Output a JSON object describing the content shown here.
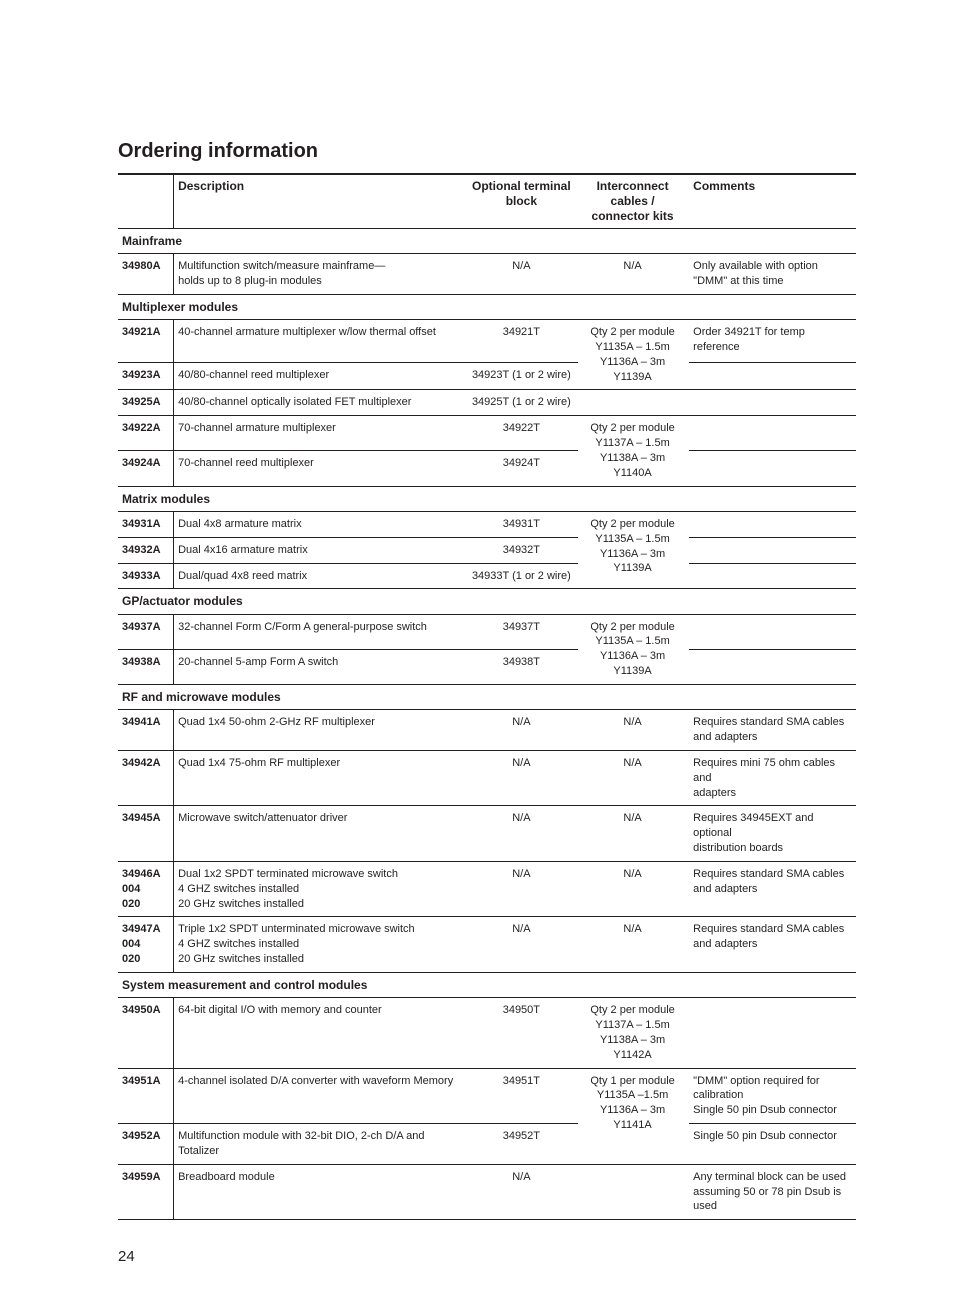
{
  "title": "Ordering information",
  "page_number": "24",
  "headers": {
    "model": "",
    "description": "Description",
    "terminal": "Optional terminal block",
    "cables": "Interconnect cables / connector kits",
    "comments": "Comments"
  },
  "sections": [
    {
      "heading": "Mainframe",
      "rows": [
        {
          "model": "34980A",
          "desc": [
            "Multifunction switch/measure mainframe—",
            "holds up to 8 plug-in modules"
          ],
          "term": "N/A",
          "cable": "N/A",
          "comments": [
            "Only available with option",
            "\"DMM\" at this time"
          ]
        }
      ]
    },
    {
      "heading": "Multiplexer modules",
      "rows": [
        {
          "model": "34921A",
          "desc": [
            "40-channel armature multiplexer w/low thermal offset"
          ],
          "term": "34921T",
          "cable": [
            "Qty 2 per module",
            "Y1135A – 1.5m",
            "Y1136A – 3m"
          ],
          "cable_rowspan": 2,
          "cable_extra": "Y1139A",
          "comments": [
            "Order 34921T for temp reference"
          ]
        },
        {
          "model": "34923A",
          "desc": [
            "40/80-channel reed multiplexer"
          ],
          "term": "34923T (1 or 2 wire)"
        },
        {
          "model": "34925A",
          "desc": [
            "40/80-channel optically isolated FET multiplexer"
          ],
          "term": "34925T (1 or 2 wire)"
        },
        {
          "model": "34922A",
          "desc": [
            "70-channel armature multiplexer"
          ],
          "term": "34922T",
          "cable": [
            "Qty 2 per module",
            "Y1137A – 1.5m",
            "Y1138A – 3m"
          ],
          "cable_rowspan": 2,
          "cable_extra": "Y1140A"
        },
        {
          "model": "34924A",
          "desc": [
            "70-channel reed multiplexer"
          ],
          "term": "34924T"
        }
      ]
    },
    {
      "heading": "Matrix modules",
      "rows": [
        {
          "model": "34931A",
          "desc": [
            "Dual 4x8 armature matrix"
          ],
          "term": "34931T",
          "cable": [
            "Qty 2 per module",
            "Y1135A – 1.5m",
            "Y1136A – 3m"
          ],
          "cable_rowspan": 3,
          "cable_extra": "Y1139A"
        },
        {
          "model": "34932A",
          "desc": [
            "Dual 4x16 armature matrix"
          ],
          "term": "34932T"
        },
        {
          "model": "34933A",
          "desc": [
            "Dual/quad 4x8 reed matrix"
          ],
          "term": "34933T (1 or 2 wire)"
        }
      ]
    },
    {
      "heading": "GP/actuator modules",
      "rows": [
        {
          "model": "34937A",
          "desc": [
            "32-channel Form C/Form A general-purpose switch"
          ],
          "term": "34937T",
          "cable": [
            "Qty 2 per module",
            "Y1135A – 1.5m",
            "Y1136A – 3m"
          ],
          "cable_rowspan": 2,
          "cable_extra": "Y1139A"
        },
        {
          "model": "34938A",
          "desc": [
            "20-channel 5-amp Form A switch"
          ],
          "term": "34938T"
        }
      ]
    },
    {
      "heading": "RF and microwave modules",
      "rows": [
        {
          "model": "34941A",
          "desc": [
            "Quad 1x4 50-ohm 2-GHz RF multiplexer"
          ],
          "term": "N/A",
          "cable": "N/A",
          "comments": [
            "Requires standard SMA cables",
            "and adapters"
          ]
        },
        {
          "model": "34942A",
          "desc": [
            "Quad 1x4 75-ohm RF multiplexer"
          ],
          "term": "N/A",
          "cable": "N/A",
          "comments": [
            "Requires mini 75 ohm cables and",
            "adapters"
          ]
        },
        {
          "model": "34945A",
          "desc": [
            "Microwave switch/attenuator driver"
          ],
          "term": "N/A",
          "cable": "N/A",
          "comments": [
            "Requires 34945EXT and optional",
            "distribution boards"
          ]
        },
        {
          "model": [
            "34946A",
            "004",
            "020"
          ],
          "desc": [
            "Dual 1x2 SPDT terminated microwave switch",
            "4 GHZ switches installed",
            "20 GHz switches installed"
          ],
          "term": "N/A",
          "cable": "N/A",
          "comments": [
            "Requires standard SMA cables",
            "and adapters"
          ]
        },
        {
          "model": [
            "34947A",
            "004",
            "020"
          ],
          "desc": [
            "Triple 1x2 SPDT unterminated microwave switch",
            "4 GHZ switches installed",
            "20 GHz switches installed"
          ],
          "term": "N/A",
          "cable": "N/A",
          "comments": [
            "Requires standard SMA cables",
            "and adapters"
          ]
        }
      ]
    },
    {
      "heading": "System measurement and control modules",
      "rows": [
        {
          "model": "34950A",
          "desc": [
            "64-bit digital I/O with memory and counter"
          ],
          "term": "34950T",
          "cable": [
            "Qty 2 per module",
            "Y1137A – 1.5m",
            "Y1138A – 3m",
            "Y1142A"
          ]
        },
        {
          "model": "34951A",
          "desc": [
            "4-channel isolated D/A converter with waveform Memory"
          ],
          "term": "34951T",
          "cable": [
            "Qty 1 per module",
            "Y1135A –1.5m",
            "Y1136A – 3m"
          ],
          "cable_rowspan": 2,
          "cable_extra": "Y1141A",
          "comments": [
            "\"DMM\" option required for",
            "calibration",
            "Single 50 pin Dsub connector"
          ]
        },
        {
          "model": "34952A",
          "desc": [
            "Multifunction module with 32-bit DIO, 2-ch D/A and Totalizer"
          ],
          "term": "34952T",
          "comments": [
            "Single 50 pin Dsub connector"
          ]
        },
        {
          "model": "34959A",
          "desc": [
            "Breadboard module"
          ],
          "term": "N/A",
          "comments": [
            "Any terminal block can be used",
            "assuming 50 or 78 pin Dsub is used"
          ]
        }
      ]
    }
  ]
}
